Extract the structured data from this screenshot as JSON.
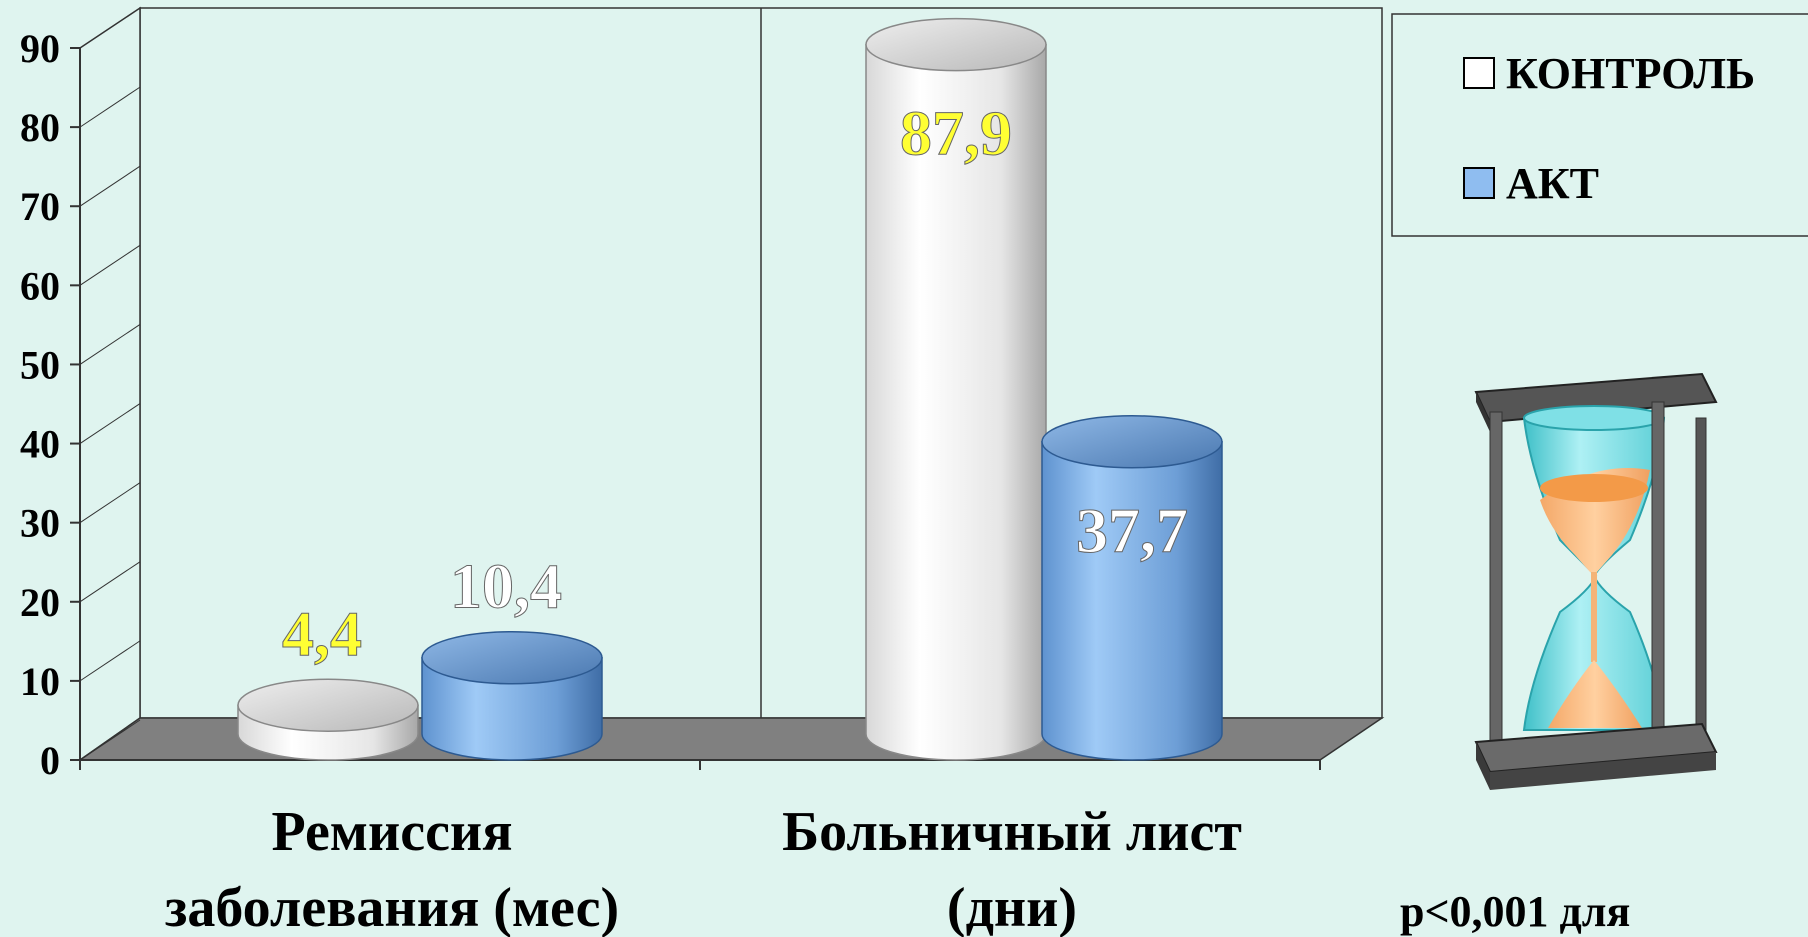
{
  "chart_data": {
    "type": "bar",
    "categories": [
      "Ремиссия заболевания (мес)",
      "Больничный лист (дни)"
    ],
    "category_lines": [
      [
        "Ремиссия",
        "заболевания (мес)"
      ],
      [
        "Больничный лист",
        "(дни)"
      ]
    ],
    "series": [
      {
        "name": "КОНТРОЛЬ",
        "values": [
          4.4,
          87.9
        ],
        "labels": [
          "4,4",
          "87,9"
        ]
      },
      {
        "name": "АКТ",
        "values": [
          10.4,
          37.7
        ],
        "labels": [
          "10,4",
          "37,7"
        ]
      }
    ],
    "ylim": [
      0,
      90
    ],
    "yticks": [
      "0",
      "10",
      "20",
      "30",
      "40",
      "50",
      "60",
      "70",
      "80",
      "90"
    ],
    "legend_position": "top-right",
    "grid": false
  },
  "colors": {
    "background": "#dff4ef",
    "control": "#f4f4f4",
    "act": "#7fb1e6",
    "floor": "#808080",
    "label_yellow": "#ffff33",
    "label_white": "#ffffff"
  },
  "footnote": "p<0,001 для",
  "icons": {
    "hourglass": "hourglass-icon"
  }
}
